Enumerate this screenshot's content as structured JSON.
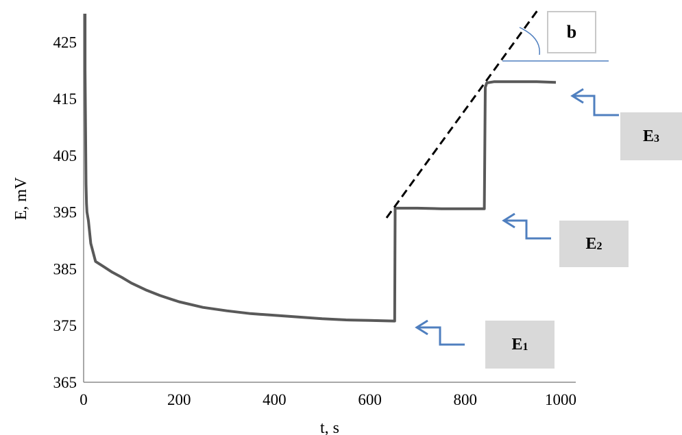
{
  "chart_data": {
    "type": "line",
    "xlabel": "t, s",
    "ylabel": "E, mV",
    "xlim": [
      0,
      1000
    ],
    "ylim": [
      365,
      430
    ],
    "x_ticks": [
      "0",
      "200",
      "400",
      "600",
      "800",
      "1000"
    ],
    "y_ticks": [
      "365",
      "375",
      "385",
      "395",
      "405",
      "415",
      "425"
    ],
    "grid": false,
    "series": [
      {
        "color": "#595959",
        "x": [
          3,
          3,
          4,
          5,
          6,
          7,
          10,
          15,
          25,
          40,
          60,
          80,
          100,
          130,
          160,
          200,
          250,
          300,
          350,
          400,
          450,
          500,
          550,
          600,
          650,
          652,
          653,
          665,
          700,
          750,
          800,
          840,
          842,
          845,
          860,
          900,
          950,
          990
        ],
        "y": [
          430,
          420,
          410,
          400,
          396.5,
          395,
          393.5,
          389.5,
          386.3,
          385.5,
          384.4,
          383.5,
          382.5,
          381.3,
          380.3,
          379.2,
          378.2,
          377.6,
          377.1,
          376.8,
          376.5,
          376.2,
          376,
          375.9,
          375.8,
          375.8,
          395.7,
          395.7,
          395.7,
          395.6,
          395.6,
          395.6,
          417,
          417.8,
          418,
          418,
          418,
          417.9
        ]
      }
    ],
    "annotations": {
      "trend_line": {
        "style": "dashed",
        "color": "#000000",
        "x": [
          635,
          955
        ],
        "y": [
          394,
          431
        ]
      },
      "b_label": "b",
      "callouts": [
        {
          "label": "E",
          "sub": "1"
        },
        {
          "label": "E",
          "sub": "2"
        },
        {
          "label": "E",
          "sub": "3"
        }
      ],
      "callout_arrow_color": "#4f7fbf"
    }
  }
}
